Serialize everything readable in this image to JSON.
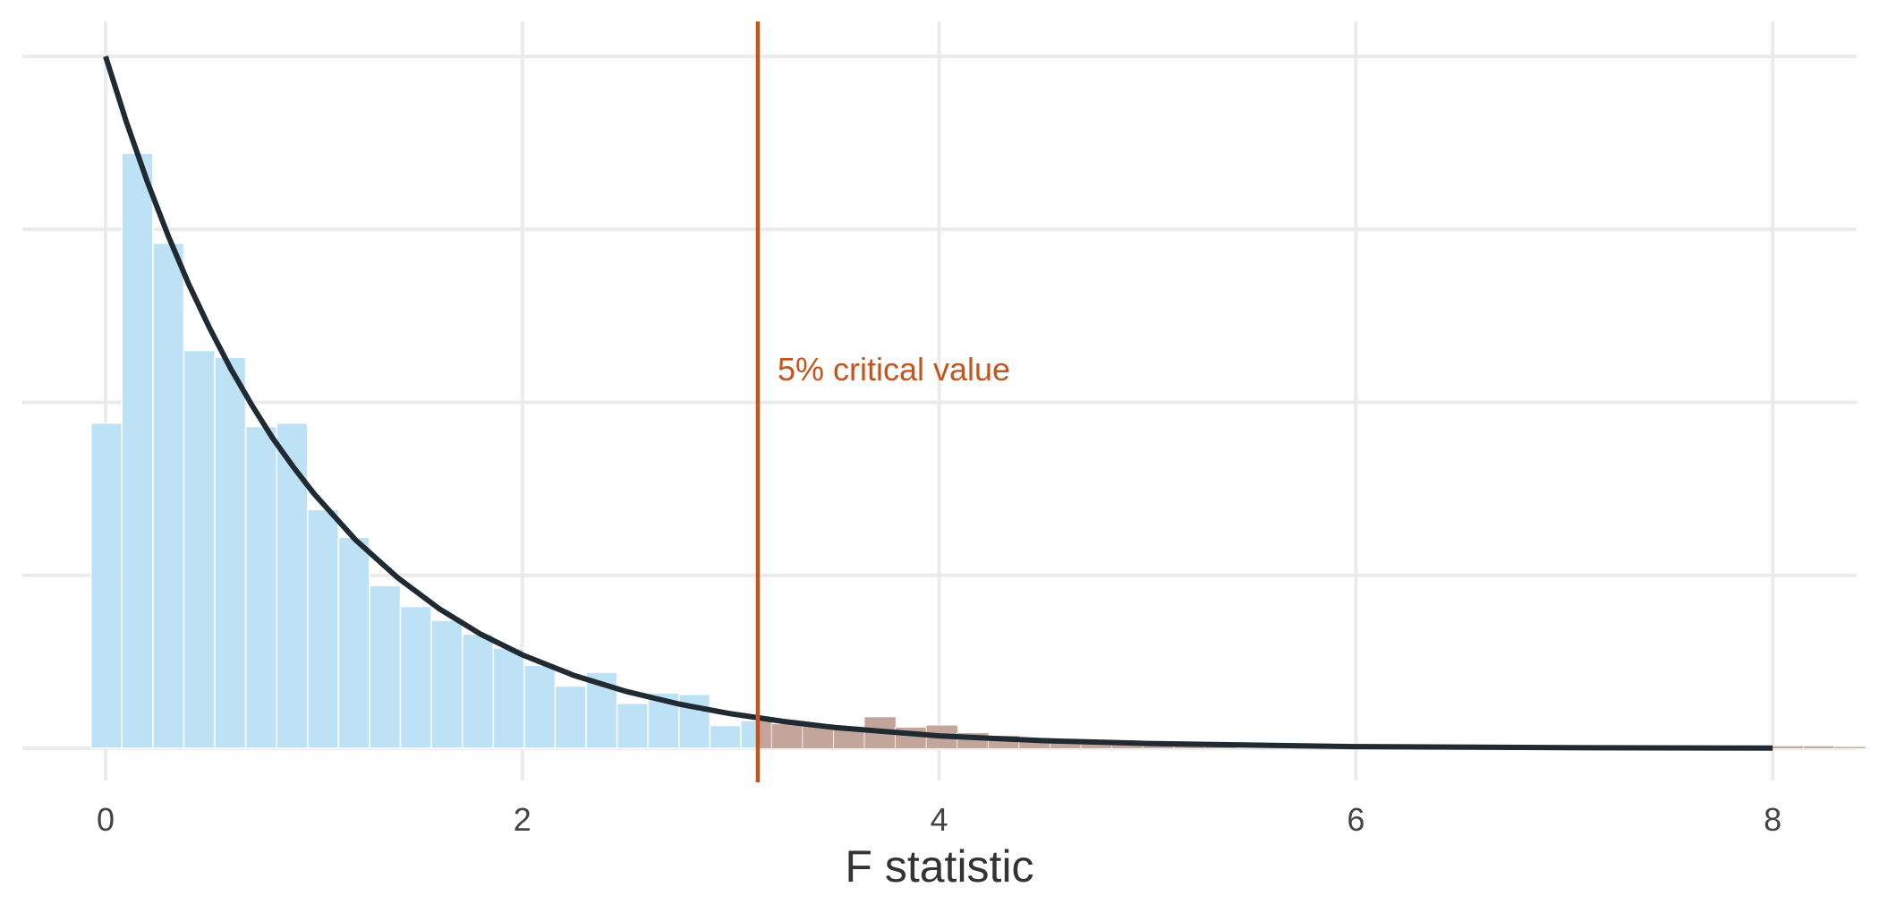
{
  "chart_data": {
    "type": "bar",
    "xlabel": "F statistic",
    "ylabel": "",
    "title": "",
    "xlim": [
      -0.4,
      8.4
    ],
    "ylim": [
      0,
      1.05
    ],
    "x_ticks": [
      0,
      2,
      4,
      6,
      8
    ],
    "x_tick_labels": [
      "0",
      "2",
      "4",
      "6",
      "8"
    ],
    "y_gridlines": [
      0,
      0.25,
      0.5,
      0.75,
      1.0
    ],
    "grid": true,
    "bin_width": 0.1485,
    "histogram": {
      "bin_left": [
        -0.07,
        0.0785,
        0.227,
        0.3755,
        0.524,
        0.6725,
        0.821,
        0.9695,
        1.118,
        1.2665,
        1.415,
        1.5635,
        1.712,
        1.8605,
        2.009,
        2.1575,
        2.306,
        2.4545,
        2.603,
        2.7515,
        2.9,
        3.0485,
        3.197,
        3.3455,
        3.494,
        3.6425,
        3.791,
        3.9395,
        4.088,
        4.2365,
        4.385,
        4.5335,
        4.682,
        4.8305,
        4.979,
        5.1275,
        5.276,
        8.0,
        8.1485,
        8.297
      ],
      "values": [
        0.47,
        0.86,
        0.73,
        0.575,
        0.565,
        0.465,
        0.47,
        0.345,
        0.305,
        0.235,
        0.205,
        0.185,
        0.165,
        0.145,
        0.12,
        0.09,
        0.11,
        0.065,
        0.08,
        0.078,
        0.033,
        0.04,
        0.035,
        0.035,
        0.03,
        0.045,
        0.03,
        0.033,
        0.022,
        0.018,
        0.015,
        0.012,
        0.01,
        0.008,
        0.007,
        0.006,
        0.005,
        0.003,
        0.003,
        0.002
      ],
      "color": "#bde2f6",
      "tail_color": "#c49a8c"
    },
    "density_curve": {
      "x": [
        0,
        0.1,
        0.2,
        0.3,
        0.4,
        0.5,
        0.6,
        0.7,
        0.8,
        0.9,
        1.0,
        1.2,
        1.4,
        1.6,
        1.8,
        2.0,
        2.25,
        2.5,
        2.75,
        3.0,
        3.25,
        3.5,
        4.0,
        4.5,
        5.0,
        6.0,
        7.0,
        8.0
      ],
      "y": [
        1.0,
        0.905,
        0.819,
        0.741,
        0.67,
        0.607,
        0.549,
        0.497,
        0.449,
        0.407,
        0.368,
        0.301,
        0.247,
        0.202,
        0.165,
        0.135,
        0.105,
        0.082,
        0.064,
        0.05,
        0.039,
        0.03,
        0.018,
        0.011,
        0.007,
        0.0025,
        0.0009,
        0.0003
      ],
      "color": "#1f2a33"
    },
    "critical_value": {
      "x": 3.13,
      "label": "5% critical value",
      "color": "#c4531c"
    }
  }
}
